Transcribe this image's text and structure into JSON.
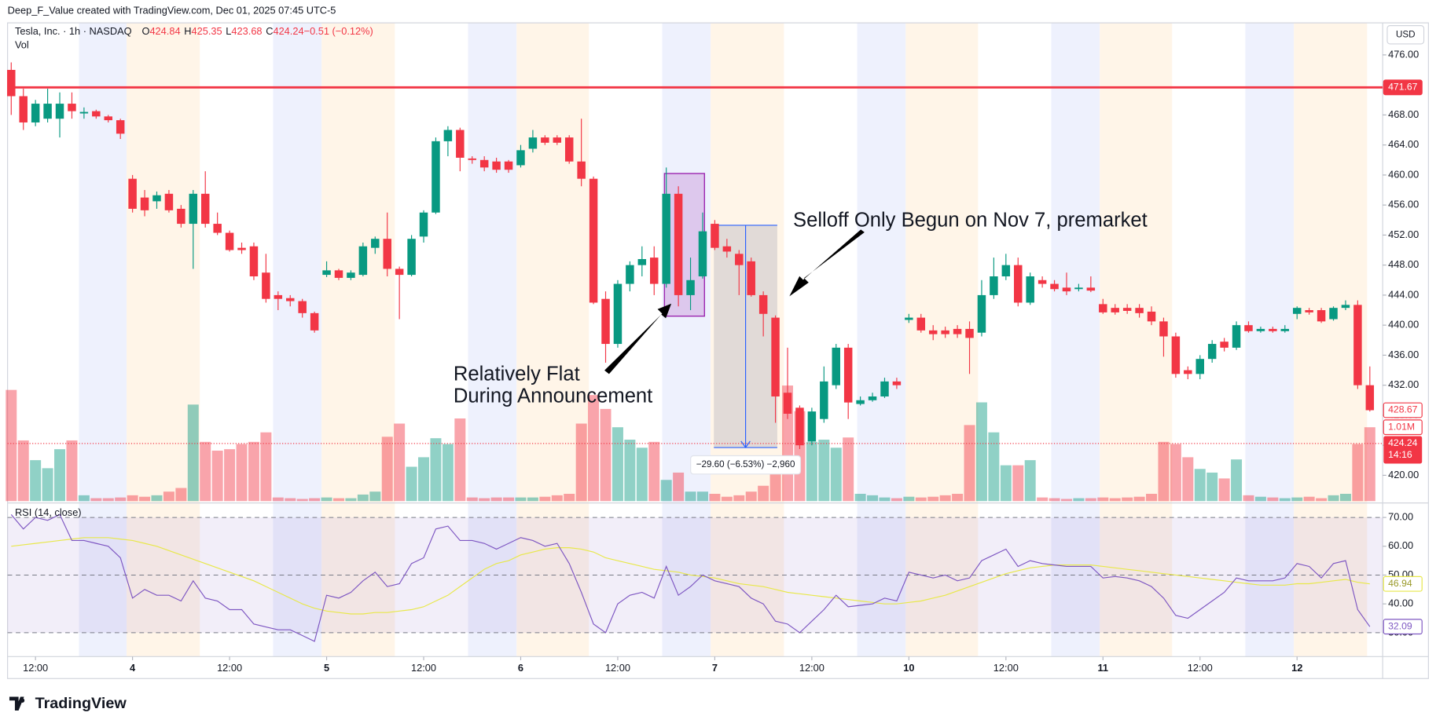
{
  "header": "Deep_F_Value created with TradingView.com, Dec 01, 2025 07:45 UTC-5",
  "legend": {
    "symbol": "Tesla, Inc. · 1h · NASDAQ",
    "items": [
      {
        "key": "O",
        "value": "424.84"
      },
      {
        "key": "H",
        "value": "425.35"
      },
      {
        "key": "L",
        "value": "423.68"
      },
      {
        "key": "C",
        "value": "424.24"
      },
      {
        "key": "",
        "value": "−0.51 (−0.12%)"
      }
    ],
    "volume": "Vol"
  },
  "currency": "USD",
  "logo": "TradingView",
  "chart_data": {
    "type": "candlestick",
    "up_color": "#089981",
    "down_color": "#f23645",
    "categories": [
      null,
      null,
      "12:00",
      null,
      null,
      null,
      null,
      null,
      null,
      null,
      "4",
      null,
      null,
      null,
      null,
      null,
      null,
      null,
      "12:00",
      null,
      null,
      null,
      null,
      null,
      null,
      null,
      "5",
      null,
      null,
      null,
      null,
      null,
      null,
      null,
      "12:00",
      null,
      null,
      null,
      null,
      null,
      null,
      null,
      "6",
      null,
      null,
      null,
      null,
      null,
      null,
      null,
      "12:00",
      null,
      null,
      null,
      null,
      null,
      null,
      null,
      "7",
      null,
      null,
      null,
      null,
      null,
      null,
      null,
      "12:00",
      null,
      null,
      null,
      null,
      null,
      null,
      null,
      "10",
      null,
      null,
      null,
      null,
      null,
      null,
      null,
      "12:00",
      null,
      null,
      null,
      null,
      null,
      null,
      null,
      "11",
      null,
      null,
      null,
      null,
      null,
      null,
      null,
      "12:00",
      null,
      null,
      null,
      null,
      null,
      null,
      null,
      "12",
      null,
      null,
      null,
      null,
      null,
      null
    ],
    "open": [
      474,
      470.5,
      467,
      467.5,
      467.5,
      469.5,
      468.2,
      468.5,
      467.8,
      467.3,
      459.5,
      457,
      456.5,
      457.5,
      455.5,
      453.5,
      457.5,
      453.5,
      452.3,
      450.3,
      450.5,
      447,
      444,
      443.6,
      443.2,
      441.6,
      446.7,
      447.3,
      446.3,
      446.7,
      450.3,
      451.5,
      447.5,
      446.7,
      451.8,
      455,
      464.5,
      466,
      462.2,
      462,
      461.8,
      461.8,
      461.3,
      463.5,
      465,
      465,
      465,
      461.8,
      459.5,
      443.5,
      437.5,
      445.5,
      448,
      449,
      445.5,
      457.5,
      444,
      446.5,
      453.5,
      450.5,
      449.5,
      448.5,
      444,
      441,
      431,
      429,
      424.5,
      427.5,
      432,
      437,
      429.5,
      430,
      430.5,
      432.5,
      440.7,
      441,
      439.3,
      439.3,
      439.5,
      439.5,
      439,
      444,
      446.5,
      448,
      443,
      446,
      445.5,
      445,
      444.8,
      445,
      442.8,
      442.3,
      442.3,
      442.3,
      441.8,
      440.5,
      438.5,
      434,
      433.5,
      435.5,
      437.8,
      437,
      440,
      439.2,
      439.5,
      439.2,
      441.5,
      442,
      442,
      440.8,
      442.3,
      442.7,
      432
    ],
    "high": [
      475,
      471.5,
      470,
      471.5,
      471,
      471,
      469,
      468.7,
      468,
      467.5,
      460,
      458,
      457.8,
      458,
      456,
      458,
      460.5,
      455,
      452.6,
      451,
      451,
      449.5,
      444.5,
      444,
      443.5,
      441.8,
      448.5,
      447.5,
      447.3,
      451,
      451.8,
      455,
      447.8,
      452,
      455.3,
      465,
      466.5,
      466.3,
      462.5,
      462.5,
      462.3,
      462,
      464,
      466,
      465.3,
      465.3,
      465.3,
      467.5,
      459.8,
      444.5,
      446,
      448.5,
      450.5,
      450.5,
      461,
      458.5,
      449,
      455,
      454,
      451.5,
      450,
      449,
      444.5,
      441.3,
      437,
      429.3,
      429,
      434.5,
      437.5,
      437.5,
      430.5,
      431,
      433,
      433,
      441.5,
      441.5,
      440,
      439.8,
      440,
      440.5,
      446,
      449,
      449.5,
      449,
      447,
      446.5,
      446,
      447,
      445.5,
      446.5,
      443.5,
      442.8,
      442.8,
      442.8,
      442.5,
      441,
      439,
      434.5,
      436,
      438,
      438.3,
      440.5,
      440.5,
      439.8,
      439.8,
      440,
      442.5,
      442.3,
      442.3,
      442.5,
      443.3,
      443.3,
      434.5
    ],
    "low": [
      468,
      466,
      466.5,
      467,
      465,
      467.5,
      467.5,
      467.5,
      467,
      464.8,
      455,
      454.5,
      455.5,
      455,
      453,
      447.5,
      453,
      452,
      449.8,
      449.5,
      446,
      443,
      442,
      442.5,
      441,
      439,
      446.4,
      446,
      446,
      446.5,
      449.5,
      446.5,
      440.8,
      446.5,
      451,
      454.8,
      462.5,
      460.5,
      461.5,
      460.5,
      460.3,
      460.3,
      461,
      463,
      464,
      464,
      461.5,
      458.5,
      442.8,
      435,
      437,
      444.5,
      446.5,
      444,
      445,
      442.5,
      442,
      446.2,
      450,
      449,
      444,
      443.8,
      438.5,
      427,
      427.5,
      423.5,
      424,
      427,
      431.5,
      427.5,
      429.3,
      429.8,
      430.3,
      431.5,
      440.3,
      439,
      438,
      438.3,
      438.3,
      433.5,
      438.5,
      443.5,
      446,
      442.5,
      442.7,
      445,
      444.5,
      444,
      444.5,
      444.4,
      441.5,
      441.4,
      441.5,
      441,
      440,
      435.8,
      433,
      432.8,
      432.8,
      435,
      436.5,
      436.7,
      439,
      439,
      439,
      439,
      440.8,
      441.4,
      440.3,
      440.6,
      442,
      431.5,
      428.5
    ],
    "close": [
      470.5,
      467,
      469.5,
      469.5,
      469.5,
      468.5,
      468.4,
      467.8,
      467.3,
      465.5,
      455.5,
      455.3,
      457.3,
      455.3,
      453.5,
      457.5,
      453.5,
      452.3,
      450,
      450,
      446.5,
      443.5,
      443.5,
      443.2,
      441.6,
      439.3,
      447.3,
      446.3,
      447,
      450.5,
      451.5,
      447.5,
      446.7,
      451.5,
      455,
      464.5,
      466,
      462.3,
      462,
      461,
      460.7,
      460.7,
      463.3,
      465,
      464.3,
      464.3,
      461.8,
      459.5,
      443,
      437.5,
      445.5,
      448,
      448.8,
      445.5,
      457.5,
      444,
      446,
      452.5,
      450.3,
      449.8,
      448,
      444,
      441.5,
      430.5,
      428.2,
      424,
      428.5,
      432.5,
      437,
      429.7,
      430,
      430.5,
      432.5,
      432,
      441,
      439.3,
      438.8,
      438.8,
      438.8,
      438.3,
      444,
      446.5,
      448,
      443,
      446.5,
      445.5,
      444.8,
      444.5,
      445,
      444.6,
      441.7,
      441.7,
      441.9,
      441.6,
      440.5,
      438.5,
      433.5,
      433.5,
      435.5,
      437.5,
      437,
      440,
      439.2,
      439.5,
      439.2,
      439.5,
      442.3,
      441.7,
      440.5,
      442.3,
      442.7,
      432,
      428.67
    ],
    "close_label": "428.67",
    "volume": [
      1.52,
      0.83,
      0.56,
      0.45,
      0.71,
      0.83,
      0.08,
      0.04,
      0.04,
      0.05,
      0.08,
      0.06,
      0.08,
      0.13,
      0.18,
      1.32,
      0.81,
      0.69,
      0.71,
      0.78,
      0.81,
      0.94,
      0.05,
      0.04,
      0.03,
      0.04,
      0.05,
      0.04,
      0.04,
      0.09,
      0.13,
      0.88,
      1.06,
      0.47,
      0.6,
      0.86,
      0.78,
      1.13,
      0.05,
      0.04,
      0.05,
      0.05,
      0.05,
      0.05,
      0.06,
      0.08,
      0.1,
      1.06,
      1.45,
      1.26,
      1.01,
      0.84,
      0.73,
      0.81,
      0.29,
      0.39,
      0.13,
      0.13,
      0.1,
      0.06,
      0.08,
      0.13,
      0.21,
      0.39,
      1.58,
      1.23,
      0.81,
      0.84,
      0.73,
      0.87,
      0.1,
      0.08,
      0.05,
      0.04,
      0.06,
      0.05,
      0.06,
      0.08,
      0.1,
      1.04,
      1.35,
      0.94,
      0.49,
      0.49,
      0.56,
      0.05,
      0.04,
      0.03,
      0.04,
      0.04,
      0.05,
      0.04,
      0.05,
      0.06,
      0.1,
      0.81,
      0.78,
      0.6,
      0.44,
      0.39,
      0.31,
      0.57,
      0.08,
      0.06,
      0.05,
      0.04,
      0.05,
      0.06,
      0.04,
      0.08,
      0.1,
      0.78,
      1.01
    ],
    "volume_label": "1.01M",
    "volume_lim": [
      0,
      6.5
    ],
    "ylim": [
      416.56,
      479.9
    ],
    "yticks": [
      {
        "value": 420,
        "label": "420.00"
      },
      {
        "value": 424,
        "label": "424.00"
      },
      {
        "value": 428,
        "label": "428.00"
      },
      {
        "value": 432,
        "label": "432.00"
      },
      {
        "value": 436,
        "label": "436.00"
      },
      {
        "value": 440,
        "label": "440.00"
      },
      {
        "value": 444,
        "label": "444.00"
      },
      {
        "value": 448,
        "label": "448.00"
      },
      {
        "value": 452,
        "label": "452.00"
      },
      {
        "value": 456,
        "label": "456.00"
      },
      {
        "value": 460,
        "label": "460.00"
      },
      {
        "value": 464,
        "label": "464.00"
      },
      {
        "value": 468,
        "label": "468.00"
      },
      {
        "value": 472,
        "label": "472.00"
      },
      {
        "value": 476,
        "label": "476.00"
      }
    ],
    "grid": false,
    "hline": {
      "value": 471.67,
      "label": "471.67",
      "color": "#f23645"
    },
    "last_price": {
      "value": 424.24,
      "label": "424.24",
      "countdown": "14:16"
    },
    "box": {
      "x": [
        54,
        57
      ],
      "y": [
        441.2,
        460.2
      ],
      "color": "#9c27b0"
    },
    "measure": {
      "x": [
        58,
        63
      ],
      "y": [
        453.3,
        423.7
      ],
      "label": "−29.60 (−6.53%) −2,960"
    },
    "annotations": [
      "Relatively Flat",
      "During Announcement",
      "Selloff Only Begun on Nov 7, premarket"
    ],
    "rsi": {
      "title": "RSI (14, close)",
      "color": "#7e57c2",
      "ma_color": "#e8e84a",
      "values": [
        71,
        66,
        70,
        69,
        71,
        62,
        62,
        61,
        60,
        56,
        42,
        45,
        43,
        43,
        41,
        48,
        42,
        41,
        38,
        38,
        33,
        32,
        31,
        31,
        29,
        27,
        43,
        42,
        44,
        48,
        51,
        46,
        47,
        54,
        56,
        66,
        67,
        62,
        62,
        61,
        59,
        61,
        63,
        62,
        60,
        61,
        54,
        44,
        33,
        30,
        40,
        43,
        44,
        42,
        53,
        43,
        46,
        50,
        48,
        47,
        46,
        42,
        40,
        34,
        33,
        30,
        34,
        38,
        43,
        39,
        39.5,
        40,
        42,
        41,
        51,
        50,
        49,
        50,
        48,
        49,
        55,
        57,
        59,
        53,
        55,
        54,
        53.5,
        53,
        53,
        53,
        49,
        49.5,
        49,
        48,
        46,
        42,
        36,
        35,
        38,
        41,
        44,
        49,
        48,
        48,
        48,
        49,
        54,
        53,
        49,
        54,
        55,
        38,
        32.09
      ],
      "ma": [
        60,
        60.5,
        61,
        61.5,
        62,
        62.5,
        63,
        63,
        63,
        62.5,
        62,
        61,
        60,
        58.5,
        57,
        55.5,
        54,
        52.5,
        51,
        49.5,
        48,
        46,
        44,
        42,
        40,
        38.5,
        37.5,
        37,
        36.5,
        36.5,
        37,
        37,
        37.5,
        38,
        39,
        41,
        43,
        46,
        49,
        52,
        54,
        55,
        57,
        58,
        59,
        59.5,
        59.5,
        59,
        58,
        56,
        55,
        54,
        53,
        52,
        51.5,
        51,
        50,
        49.5,
        49,
        48,
        47,
        46.5,
        46,
        45,
        44,
        43.5,
        43,
        42.5,
        42,
        41.5,
        41,
        40.5,
        40,
        40,
        40.5,
        41,
        42,
        43,
        44.5,
        46,
        47.5,
        49,
        50.5,
        51.5,
        52.5,
        53,
        53.5,
        53.5,
        53.5,
        53.5,
        53,
        52.5,
        52,
        51.5,
        51,
        50.5,
        50,
        49.5,
        49,
        48.5,
        48,
        47.5,
        47,
        46.5,
        46.5,
        46.5,
        47,
        47,
        47.5,
        48,
        48.5,
        47.5,
        46.94
      ],
      "value_label": "32.09",
      "ma_label": "46.94",
      "ylim": [
        21.7,
        74.4
      ],
      "yticks": [
        {
          "value": 30,
          "label": "30.00"
        },
        {
          "value": 40,
          "label": "40.00"
        },
        {
          "value": 50,
          "label": "50.00"
        },
        {
          "value": 60,
          "label": "60.00"
        },
        {
          "value": 70,
          "label": "70.00"
        }
      ],
      "levels": [
        30,
        50,
        70
      ]
    }
  }
}
